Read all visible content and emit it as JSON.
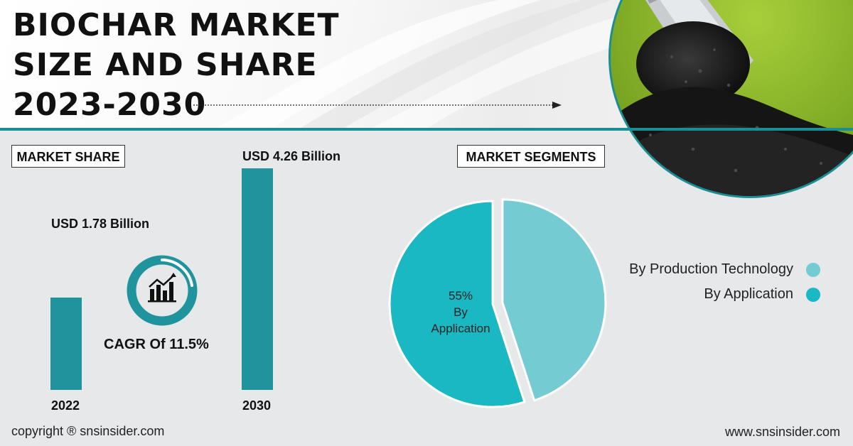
{
  "header": {
    "title_line1": "BIOCHAR MARKET",
    "title_line2": "SIZE AND SHARE",
    "title_line3": "2023-2030"
  },
  "market_share": {
    "label": "MARKET SHARE",
    "bar_2022_value_label": "USD 1.78 Billion",
    "bar_2030_value_label": "USD 4.26 Billion",
    "year_2022": "2022",
    "year_2030": "2030",
    "cagr_label": "CAGR Of 11.5%"
  },
  "segments": {
    "label": "MARKET SEGMENTS",
    "slice_label_pct": "55%",
    "slice_label_line1": "By",
    "slice_label_line2": "Application",
    "legend": [
      {
        "name": "By Production Technology",
        "color": "#74cbd1"
      },
      {
        "name": "By Application",
        "color": "#19b8c2"
      }
    ]
  },
  "footer": {
    "copyright": "copyright ® snsinsider.com",
    "website": "www.snsinsider.com"
  },
  "chart_data": [
    {
      "type": "bar",
      "categories": [
        "2022",
        "2030"
      ],
      "values": [
        1.78,
        4.26
      ],
      "data_labels": [
        "USD 1.78 Billion",
        "USD 4.26 Billion"
      ],
      "annotation": "CAGR Of 11.5%",
      "color": "#1f949c"
    },
    {
      "type": "pie",
      "categories": [
        "By Production Technology",
        "By Application"
      ],
      "values": [
        45,
        55
      ],
      "colors": [
        "#74cbd1",
        "#19b8c2"
      ],
      "legend": "right"
    }
  ]
}
